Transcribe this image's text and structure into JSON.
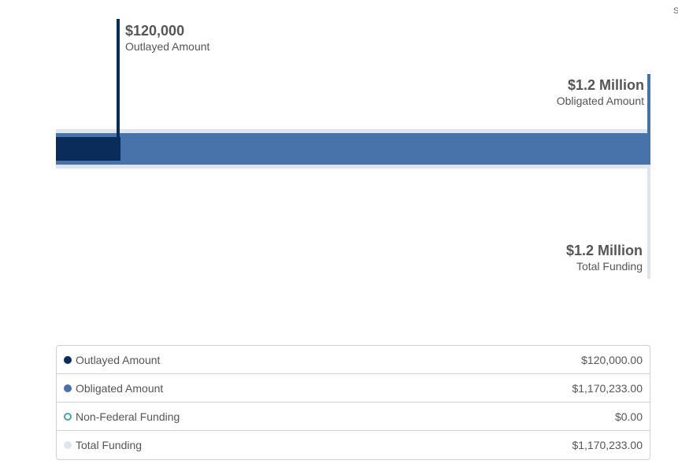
{
  "edge_text": "S",
  "chart_data": {
    "type": "bar",
    "orientation": "horizontal",
    "series": [
      {
        "name": "Outlayed Amount",
        "value": 120000,
        "color": "#0a2c5a"
      },
      {
        "name": "Obligated Amount",
        "value": 1170233,
        "color": "#4873aa"
      },
      {
        "name": "Total Funding",
        "value": 1170233,
        "color": "#dfe5ef"
      }
    ],
    "annotations": {
      "outlayed": {
        "value_label": "$120,000",
        "name": "Outlayed Amount"
      },
      "obligated": {
        "value_label": "$1.2 Million",
        "name": "Obligated Amount"
      },
      "total": {
        "value_label": "$1.2 Million",
        "name": "Total Funding"
      }
    }
  },
  "legend": {
    "rows": [
      {
        "label": "Outlayed Amount",
        "value": "$120,000.00",
        "color": "#0a2c5a"
      },
      {
        "label": "Obligated Amount",
        "value": "$1,170,233.00",
        "color": "#4873aa"
      },
      {
        "label": "Non-Federal Funding",
        "value": "$0.00",
        "color": "#4aa5a0"
      },
      {
        "label": "Total Funding",
        "value": "$1,170,233.00",
        "color": "#dfe5ef"
      }
    ]
  }
}
